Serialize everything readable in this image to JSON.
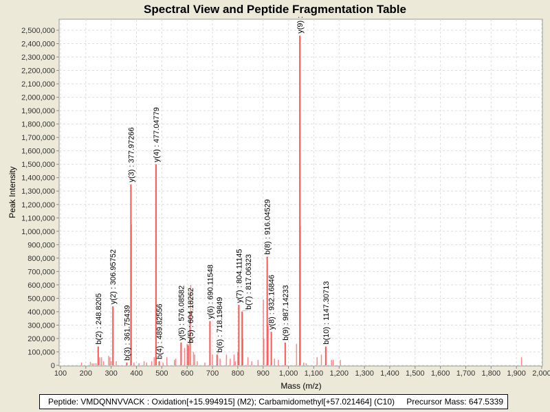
{
  "chart_data": {
    "type": "bar",
    "title": "Spectral View and Peptide Fragmentation Table",
    "xlabel": "Mass (m/z)",
    "ylabel": "Peak Intensity",
    "xlim": [
      100,
      2000
    ],
    "ylim": [
      0,
      2550000
    ],
    "xticks": [
      "100",
      "200",
      "300",
      "400",
      "500",
      "600",
      "700",
      "800",
      "900",
      "1,000",
      "1,100",
      "1,200",
      "1,300",
      "1,400",
      "1,500",
      "1,600",
      "1,700",
      "1,800",
      "1,900",
      "2,000"
    ],
    "yticks": [
      "0",
      "100,000",
      "200,000",
      "300,000",
      "400,000",
      "500,000",
      "600,000",
      "700,000",
      "800,000",
      "900,000",
      "1,000,000",
      "1,100,000",
      "1,200,000",
      "1,300,000",
      "1,400,000",
      "1,500,000",
      "1,600,000",
      "1,700,000",
      "1,800,000",
      "1,900,000",
      "2,000,000",
      "2,100,000",
      "2,200,000",
      "2,300,000",
      "2,400,000",
      "2,500,000"
    ],
    "grid": true,
    "color": "#FF5555",
    "annotated_peaks": [
      {
        "mz": 248.82,
        "intensity": 140000,
        "label": "b(2) : 248.8205"
      },
      {
        "mz": 306.96,
        "intensity": 440000,
        "label": "y(2) : 306.95752"
      },
      {
        "mz": 361.75,
        "intensity": 20000,
        "label": "b(3) : 361.75439"
      },
      {
        "mz": 377.97,
        "intensity": 1350000,
        "label": "y(3) : 377.97266"
      },
      {
        "mz": 477.05,
        "intensity": 1500000,
        "label": "y(4) : 477.04779"
      },
      {
        "mz": 489.83,
        "intensity": 30000,
        "label": "b(4) : 489.82556"
      },
      {
        "mz": 576.09,
        "intensity": 170000,
        "label": "y(5) : 576.08582"
      },
      {
        "mz": 604.18,
        "intensity": 150000,
        "label": "b(5) : 604.18262"
      },
      {
        "mz": 690.12,
        "intensity": 330000,
        "label": "y(6) : 690.11548"
      },
      {
        "mz": 718.2,
        "intensity": 80000,
        "label": "b(6) : 718.19849"
      },
      {
        "mz": 804.11,
        "intensity": 450000,
        "label": "y(7) : 804.11145"
      },
      {
        "mz": 817.06,
        "intensity": 400000,
        "label": "b(7) : 817.06323"
      },
      {
        "mz": 916.05,
        "intensity": 810000,
        "label": "b(8) : 916.04529"
      },
      {
        "mz": 932.17,
        "intensity": 250000,
        "label": "y(8) : 932.16846"
      },
      {
        "mz": 987.14,
        "intensity": 170000,
        "label": "b(9) : 987.14233"
      },
      {
        "mz": 1045.0,
        "intensity": 2460000,
        "label": "y(9) :"
      },
      {
        "mz": 1147.31,
        "intensity": 140000,
        "label": "b(10) : 1147.30713"
      }
    ],
    "other_peaks": [
      [
        183,
        20000
      ],
      [
        218,
        25000
      ],
      [
        225,
        15000
      ],
      [
        232,
        15000
      ],
      [
        240,
        15000
      ],
      [
        255,
        60000
      ],
      [
        262,
        60000
      ],
      [
        270,
        30000
      ],
      [
        290,
        70000
      ],
      [
        295,
        60000
      ],
      [
        300,
        30000
      ],
      [
        320,
        30000
      ],
      [
        380,
        1050000
      ],
      [
        390,
        20000
      ],
      [
        410,
        15000
      ],
      [
        430,
        30000
      ],
      [
        440,
        20000
      ],
      [
        460,
        30000
      ],
      [
        470,
        60000
      ],
      [
        505,
        20000
      ],
      [
        520,
        60000
      ],
      [
        550,
        40000
      ],
      [
        555,
        50000
      ],
      [
        590,
        130000
      ],
      [
        600,
        160000
      ],
      [
        610,
        400000
      ],
      [
        614,
        600000
      ],
      [
        625,
        100000
      ],
      [
        630,
        80000
      ],
      [
        640,
        30000
      ],
      [
        670,
        20000
      ],
      [
        700,
        80000
      ],
      [
        730,
        50000
      ],
      [
        755,
        80000
      ],
      [
        770,
        50000
      ],
      [
        785,
        80000
      ],
      [
        790,
        30000
      ],
      [
        800,
        100000
      ],
      [
        820,
        200000
      ],
      [
        840,
        60000
      ],
      [
        855,
        30000
      ],
      [
        880,
        40000
      ],
      [
        901,
        490000
      ],
      [
        903,
        200000
      ],
      [
        920,
        300000
      ],
      [
        945,
        50000
      ],
      [
        960,
        40000
      ],
      [
        1032,
        160000
      ],
      [
        1047,
        1040000
      ],
      [
        1060,
        20000
      ],
      [
        1070,
        15000
      ],
      [
        1113,
        60000
      ],
      [
        1130,
        80000
      ],
      [
        1170,
        40000
      ],
      [
        1177,
        40000
      ],
      [
        1205,
        40000
      ],
      [
        1920,
        60000
      ]
    ]
  },
  "legend": {
    "peptide": "Peptide: VMDQNNVVACK : Oxidation[+15.994915] (M2); Carbamidomethyl[+57.021464] (C10)",
    "precursor": "Precursor Mass: 647.5339"
  }
}
